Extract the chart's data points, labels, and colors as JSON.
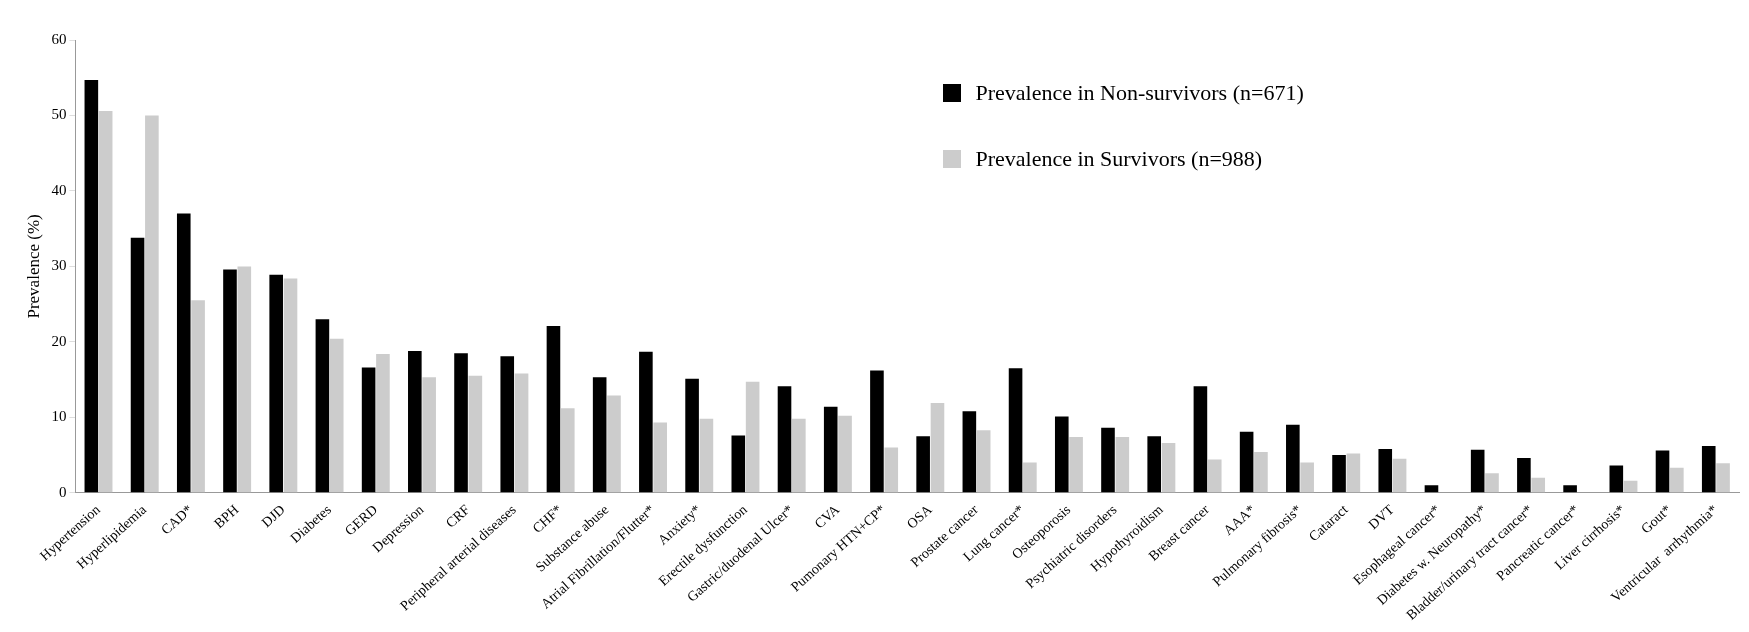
{
  "chart_data": {
    "type": "bar",
    "ylabel": "Prevalence (%)",
    "categories": [
      "Hypertension",
      "Hyperlipidemia",
      "CAD*",
      "BPH",
      "DJD",
      "Diabetes",
      "GERD",
      "Depression",
      "CRF",
      "Peripheral arterial diseases",
      "CHF*",
      "Substance abuse",
      "Atrial Fibrillation/Flutter*",
      "Anxiety*",
      "Erectile dysfunction",
      "Gastric/duodenal Ulcer*",
      "CVA",
      "Pumonary HTN+CP*",
      "OSA",
      "Prostate cancer",
      "Lung cancer*",
      "Osteoporosis",
      "Psychiatric disorders",
      "Hypothyroidism",
      "Breast cancer",
      "AAA*",
      "Pulmonary fibrosis*",
      "Cataract",
      "DVT",
      "Esophageal cancer*",
      "Diabetes w. Neuropathy*",
      "Bladder/urinary tract cancer*",
      "Pancreatic cancer*",
      "Liver cirrhosis*",
      "Gout*",
      "Ventricular  arrhythmia*"
    ],
    "series": [
      {
        "name": "Prevalence in Non-survivors (n=671)",
        "color": "#000000",
        "values": [
          54.7,
          33.8,
          37,
          29.6,
          28.9,
          23,
          16.6,
          18.8,
          18.5,
          18.1,
          22.1,
          15.3,
          18.7,
          15.1,
          7.6,
          14.1,
          11.4,
          16.2,
          7.5,
          10.8,
          16.5,
          10.1,
          8.6,
          7.5,
          14.1,
          8.1,
          9,
          5,
          5.8,
          1,
          5.7,
          4.6,
          1,
          3.6,
          5.6,
          6.2
        ]
      },
      {
        "name": "Prevalence in Survivors (n=988)",
        "color": "#cccccc",
        "values": [
          50.6,
          50,
          25.5,
          30,
          28.4,
          20.4,
          18.4,
          15.3,
          15.5,
          15.8,
          11.2,
          12.9,
          9.3,
          9.8,
          14.7,
          9.8,
          10.2,
          6,
          11.9,
          8.3,
          4,
          7.4,
          7.4,
          6.6,
          4.4,
          5.4,
          4,
          5.2,
          4.5,
          0,
          2.6,
          2,
          null,
          1.6,
          3.3,
          3.9
        ]
      }
    ],
    "ylim": [
      0,
      60
    ],
    "yticks": [
      0,
      10,
      20,
      30,
      40,
      50,
      60
    ],
    "grid": false,
    "legend": "top"
  }
}
